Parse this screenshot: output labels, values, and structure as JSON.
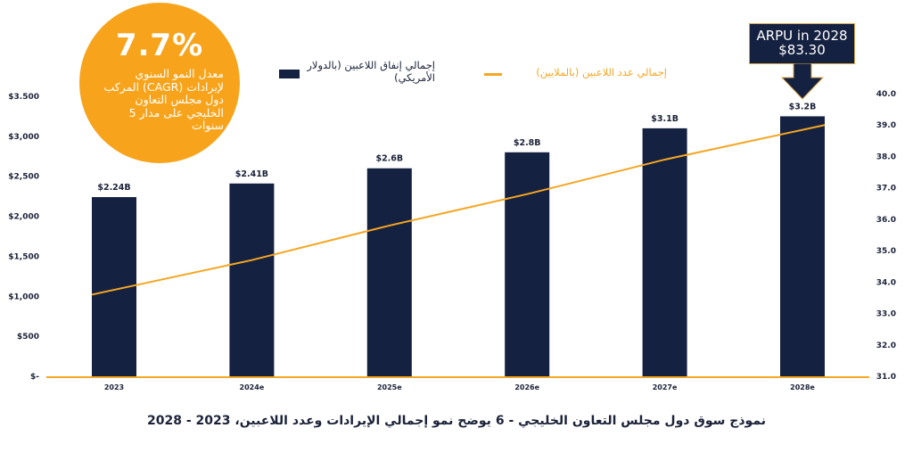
{
  "callout": {
    "value": "7.7%",
    "text": "معدل النمو السنوي لإيرادات (CAGR) المركب دول مجلس التعاون الخليجي على مدار 5 سنوات",
    "color": "#f7a41c"
  },
  "arpu": {
    "line1": "ARPU in 2028",
    "line2": "$83.30"
  },
  "chart_data": {
    "type": "bar",
    "title": "نموذج سوق دول مجلس التعاون الخليجي - 6 يوضح نمو إجمالي الإيرادات وعدد اللاعبين، 2023 - 2028",
    "categories": [
      "2023",
      "2024e",
      "2025e",
      "2026e",
      "2027e",
      "2028e"
    ],
    "series": [
      {
        "name": "إجمالي إنفاق اللاعبين (بالدولار الأمريكي)",
        "type": "bar",
        "axis": "left",
        "color": "#152140",
        "values": [
          2240,
          2410,
          2600,
          2800,
          3100,
          3250
        ],
        "labels": [
          "$2.24B",
          "$2.41B",
          "$2.6B",
          "$2.8B",
          "$3.1B",
          "$3.2B"
        ]
      },
      {
        "name": "إجمالي عدد اللاعبين (بالملايين)",
        "type": "line",
        "axis": "right",
        "color": "#f5a623",
        "values": [
          33.6,
          34.7,
          35.8,
          36.8,
          37.9,
          39.0
        ]
      }
    ],
    "y_left": {
      "lim": [
        0,
        3500
      ],
      "ticks": [
        0,
        500,
        1000,
        1500,
        2000,
        2500,
        3000,
        3500
      ],
      "tick_labels": [
        "$-",
        "$500",
        "$1,000",
        "$1,500",
        "$2,000",
        "$2,500",
        "$3,000",
        "$3.500"
      ]
    },
    "y_right": {
      "lim": [
        31,
        40
      ],
      "ticks": [
        31,
        32,
        33,
        34,
        35,
        36,
        37,
        38,
        39,
        40
      ],
      "tick_labels": [
        "31.0",
        "32.0",
        "33.0",
        "34.0",
        "35.0",
        "36.0",
        "37.0",
        "38.0",
        "39.0",
        "40.0"
      ]
    },
    "grid": false,
    "legend": "top-center"
  }
}
